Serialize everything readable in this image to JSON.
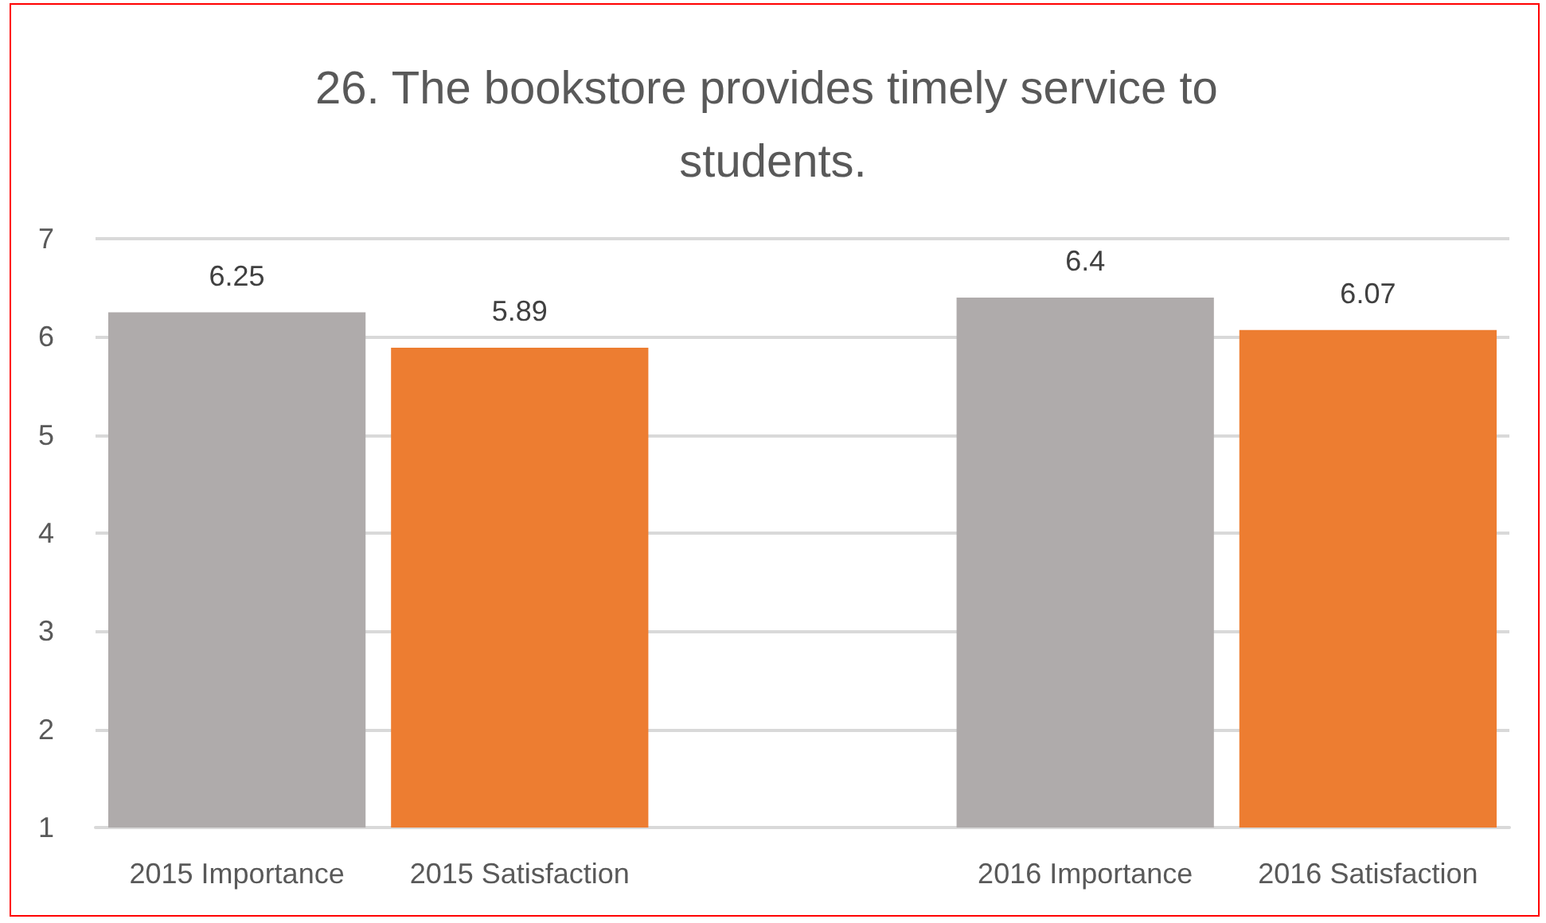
{
  "chart_data": {
    "type": "bar",
    "title": "26. The bookstore provides timely service to students.",
    "categories": [
      "2015 Importance",
      "2015 Satisfaction",
      null,
      "2016 Importance",
      "2016 Satisfaction"
    ],
    "values": [
      6.25,
      5.89,
      null,
      6.4,
      6.07
    ],
    "colors": [
      "#afabab",
      "#ed7d31",
      null,
      "#afabab",
      "#ed7d31"
    ],
    "ylim": [
      1,
      7
    ],
    "yticks": [
      1,
      2,
      3,
      4,
      5,
      6,
      7
    ],
    "grid": "y",
    "data_labels": true
  }
}
